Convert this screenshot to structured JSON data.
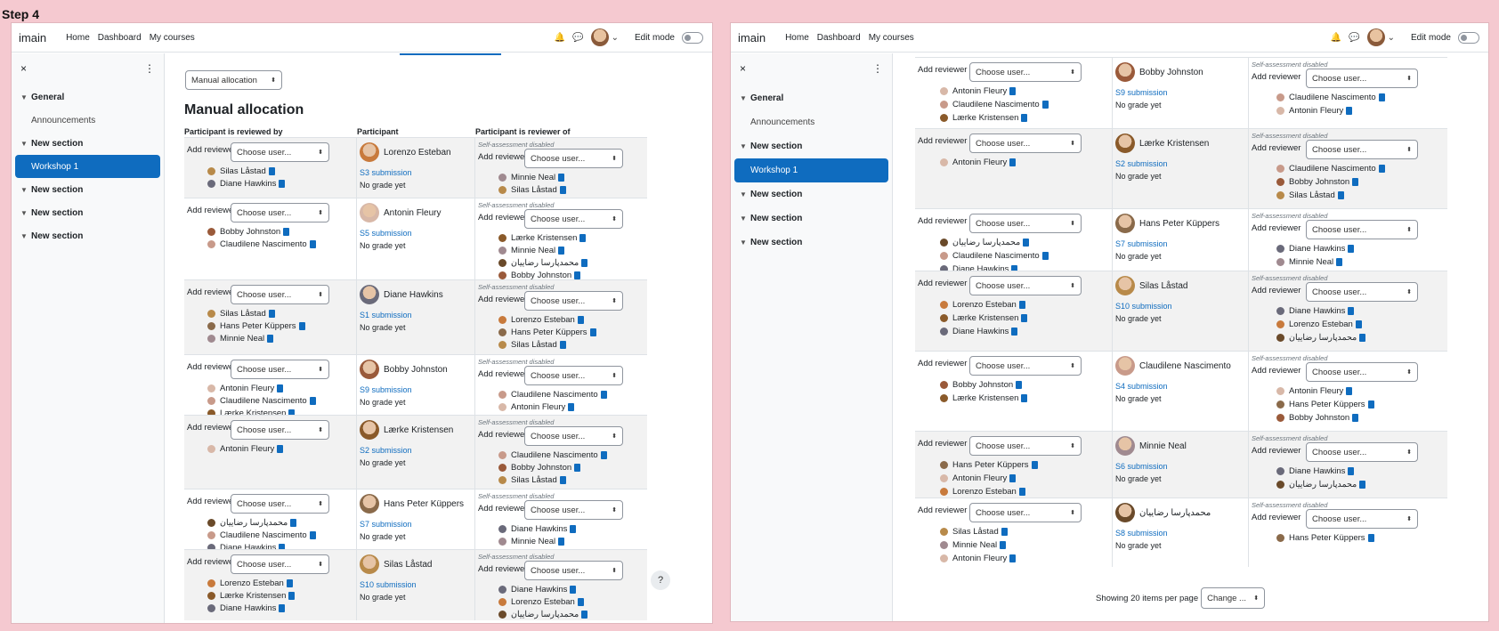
{
  "step_label": "Step 4",
  "nav": {
    "brand": "imain",
    "links": [
      "Home",
      "Dashboard",
      "My courses"
    ],
    "edit_mode": "Edit mode"
  },
  "drawer": {
    "close": "×",
    "more": "⋮",
    "items": [
      {
        "label": "General",
        "type": "section"
      },
      {
        "label": "Announcements",
        "type": "sub"
      },
      {
        "label": "New section",
        "type": "section"
      },
      {
        "label": "Workshop 1",
        "type": "active"
      },
      {
        "label": "New section",
        "type": "section"
      },
      {
        "label": "New section",
        "type": "section"
      },
      {
        "label": "New section",
        "type": "section"
      }
    ]
  },
  "allocation_select": "Manual allocation",
  "page_title": "Manual allocation",
  "table_headers": [
    "Participant is reviewed by",
    "Participant",
    "Participant is reviewer of"
  ],
  "add_reviewer_label": "Add reviewer",
  "add_reviewee_label": "Add reviewee",
  "choose_user": "Choose user...",
  "self_assessment": "Self-assessment disabled",
  "no_grade": "No grade yet",
  "rows": [
    {
      "participant": "Lorenzo Esteban",
      "av": "#c87a3c",
      "submission": "S3 submission",
      "reviewed_by": [
        {
          "n": "Silas Låstad",
          "c": "#b88a4a"
        },
        {
          "n": "Diane Hawkins",
          "c": "#6a6a7a"
        }
      ],
      "reviewer_of": [
        {
          "n": "Minnie Neal",
          "c": "#a08a90"
        },
        {
          "n": "Silas Låstad",
          "c": "#b88a4a"
        }
      ]
    },
    {
      "participant": "Antonin Fleury",
      "av": "#d8b8a8",
      "submission": "S5 submission",
      "reviewed_by": [
        {
          "n": "Bobby Johnston",
          "c": "#9a5a3a"
        },
        {
          "n": "Claudilene Nascimento",
          "c": "#c89a8a"
        }
      ],
      "reviewer_of": [
        {
          "n": "Lærke Kristensen",
          "c": "#8a5a2a"
        },
        {
          "n": "Minnie Neal",
          "c": "#a08a90"
        },
        {
          "n": "محمدپارسا رضاییان",
          "c": "#6a4a2a"
        },
        {
          "n": "Bobby Johnston",
          "c": "#9a5a3a"
        }
      ]
    },
    {
      "participant": "Diane Hawkins",
      "av": "#6a6a7a",
      "submission": "S1 submission",
      "reviewed_by": [
        {
          "n": "Silas Låstad",
          "c": "#b88a4a"
        },
        {
          "n": "Hans Peter Küppers",
          "c": "#8a6a4a"
        },
        {
          "n": "Minnie Neal",
          "c": "#a08a90"
        }
      ],
      "reviewer_of": [
        {
          "n": "Lorenzo Esteban",
          "c": "#c87a3c"
        },
        {
          "n": "Hans Peter Küppers",
          "c": "#8a6a4a"
        },
        {
          "n": "Silas Låstad",
          "c": "#b88a4a"
        }
      ]
    },
    {
      "participant": "Bobby Johnston",
      "av": "#9a5a3a",
      "submission": "S9 submission",
      "reviewed_by": [
        {
          "n": "Antonin Fleury",
          "c": "#d8b8a8"
        },
        {
          "n": "Claudilene Nascimento",
          "c": "#c89a8a"
        },
        {
          "n": "Lærke Kristensen",
          "c": "#8a5a2a"
        }
      ],
      "reviewer_of": [
        {
          "n": "Claudilene Nascimento",
          "c": "#c89a8a"
        },
        {
          "n": "Antonin Fleury",
          "c": "#d8b8a8"
        }
      ]
    },
    {
      "participant": "Lærke Kristensen",
      "av": "#8a5a2a",
      "submission": "S2 submission",
      "reviewed_by": [
        {
          "n": "Antonin Fleury",
          "c": "#d8b8a8"
        }
      ],
      "reviewer_of": [
        {
          "n": "Claudilene Nascimento",
          "c": "#c89a8a"
        },
        {
          "n": "Bobby Johnston",
          "c": "#9a5a3a"
        },
        {
          "n": "Silas Låstad",
          "c": "#b88a4a"
        }
      ]
    },
    {
      "participant": "Hans Peter Küppers",
      "av": "#8a6a4a",
      "submission": "S7 submission",
      "reviewed_by": [
        {
          "n": "محمدپارسا رضاییان",
          "c": "#6a4a2a"
        },
        {
          "n": "Claudilene Nascimento",
          "c": "#c89a8a"
        },
        {
          "n": "Diane Hawkins",
          "c": "#6a6a7a"
        }
      ],
      "reviewer_of": [
        {
          "n": "Diane Hawkins",
          "c": "#6a6a7a"
        },
        {
          "n": "Minnie Neal",
          "c": "#a08a90"
        }
      ]
    },
    {
      "participant": "Silas Låstad",
      "av": "#b88a4a",
      "submission": "S10 submission",
      "reviewed_by": [
        {
          "n": "Lorenzo Esteban",
          "c": "#c87a3c"
        },
        {
          "n": "Lærke Kristensen",
          "c": "#8a5a2a"
        },
        {
          "n": "Diane Hawkins",
          "c": "#6a6a7a"
        }
      ],
      "reviewer_of": [
        {
          "n": "Diane Hawkins",
          "c": "#6a6a7a"
        },
        {
          "n": "Lorenzo Esteban",
          "c": "#c87a3c"
        },
        {
          "n": "محمدپارسا رضاییان",
          "c": "#6a4a2a"
        }
      ]
    },
    {
      "participant": "Claudilene Nascimento",
      "av": "#c89a8a",
      "submission": "S4 submission",
      "reviewed_by": [
        {
          "n": "Bobby Johnston",
          "c": "#9a5a3a"
        },
        {
          "n": "Lærke Kristensen",
          "c": "#8a5a2a"
        }
      ],
      "reviewer_of": [
        {
          "n": "Antonin Fleury",
          "c": "#d8b8a8"
        },
        {
          "n": "Hans Peter Küppers",
          "c": "#8a6a4a"
        },
        {
          "n": "Bobby Johnston",
          "c": "#9a5a3a"
        }
      ]
    },
    {
      "participant": "Minnie Neal",
      "av": "#a08a90",
      "submission": "S6 submission",
      "reviewed_by": [
        {
          "n": "Hans Peter Küppers",
          "c": "#8a6a4a"
        },
        {
          "n": "Antonin Fleury",
          "c": "#d8b8a8"
        },
        {
          "n": "Lorenzo Esteban",
          "c": "#c87a3c"
        }
      ],
      "reviewer_of": [
        {
          "n": "Diane Hawkins",
          "c": "#6a6a7a"
        },
        {
          "n": "محمدپارسا رضاییان",
          "c": "#6a4a2a"
        }
      ]
    },
    {
      "participant": "محمدپارسا رضاییان",
      "av": "#6a4a2a",
      "submission": "S8 submission",
      "reviewed_by": [
        {
          "n": "Silas Låstad",
          "c": "#b88a4a"
        },
        {
          "n": "Minnie Neal",
          "c": "#a08a90"
        },
        {
          "n": "Antonin Fleury",
          "c": "#d8b8a8"
        }
      ],
      "reviewer_of": [
        {
          "n": "Hans Peter Küppers",
          "c": "#8a6a4a"
        }
      ]
    }
  ],
  "footer": {
    "showing": "Showing 20 items per page",
    "change": "Change ..."
  },
  "help": "?"
}
